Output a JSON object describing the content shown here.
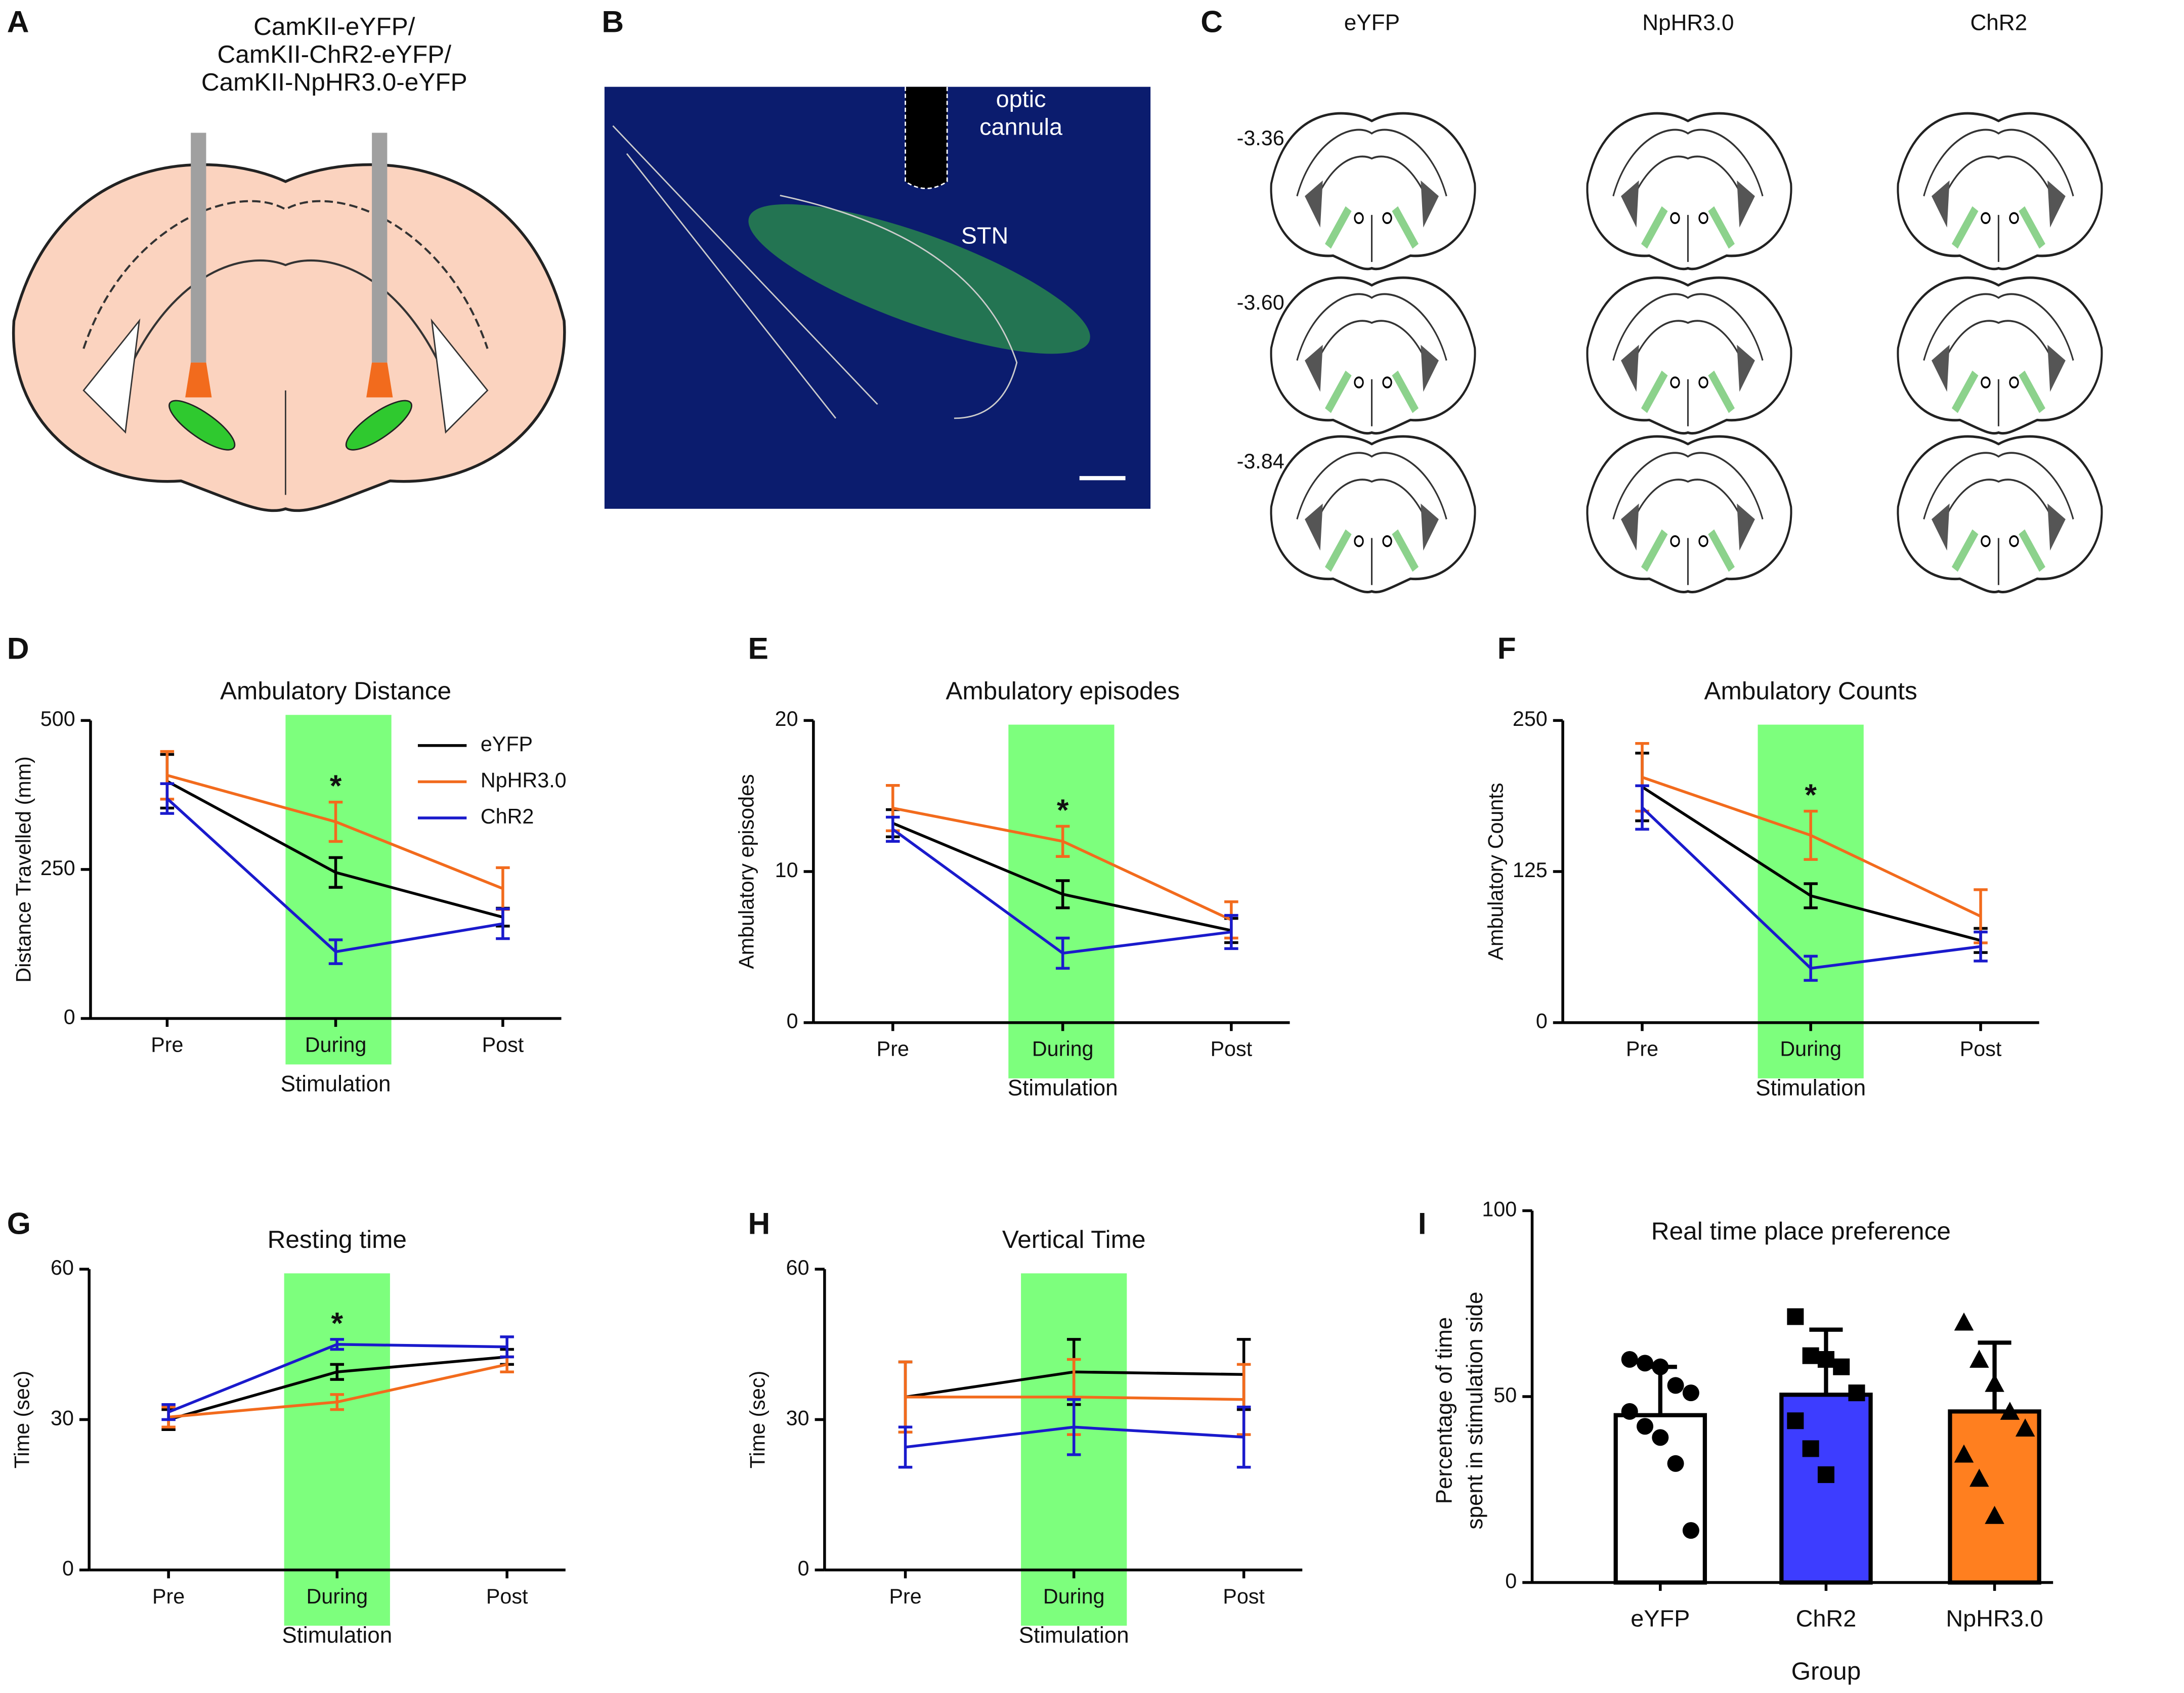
{
  "figure": {
    "panels": {
      "A": {
        "label": "A",
        "lines": [
          "CamKII-eYFP/",
          "CamKII-ChR2-eYFP/",
          "CamKII-NpHR3.0-eYFP"
        ]
      },
      "B": {
        "label": "B",
        "cannula": [
          "optic",
          "cannula"
        ],
        "region": "STN"
      },
      "C": {
        "label": "C",
        "columns": [
          "eYFP",
          "NpHR3.0",
          "ChR2"
        ],
        "rows": [
          "-3.36",
          "-3.60",
          "-3.84"
        ]
      }
    }
  },
  "chart_data": [
    {
      "type": "line",
      "panel": "D",
      "title": "Ambulatory Distance",
      "xlabel": "Stimulation",
      "ylabel": "Distance Travelled (mm)",
      "categories": [
        "Pre",
        "During",
        "Post"
      ],
      "ylim": [
        0,
        500
      ],
      "yticks": [
        0,
        250,
        500
      ],
      "band_color": "#7dff7d",
      "annotation": "*",
      "legend": "upper right",
      "series": [
        {
          "name": "eYFP",
          "color": "#000000",
          "values": [
            398,
            245,
            170
          ],
          "errors": [
            45,
            25,
            15
          ]
        },
        {
          "name": "NpHR3.0",
          "color": "#f26b1d",
          "values": [
            408,
            330,
            218
          ],
          "errors": [
            40,
            33,
            35
          ]
        },
        {
          "name": "ChR2",
          "color": "#1a1acc",
          "values": [
            369,
            112,
            159
          ],
          "errors": [
            25,
            20,
            25
          ]
        }
      ]
    },
    {
      "type": "line",
      "panel": "E",
      "title": "Ambulatory episodes",
      "xlabel": "Stimulation",
      "ylabel": "Ambulatory episodes",
      "categories": [
        "Pre",
        "During",
        "Post"
      ],
      "ylim": [
        0,
        20
      ],
      "yticks": [
        0,
        10,
        20
      ],
      "band_color": "#7dff7d",
      "annotation": "*",
      "series": [
        {
          "name": "eYFP",
          "color": "#000000",
          "values": [
            13.2,
            8.5,
            6.1
          ],
          "errors": [
            0.9,
            0.9,
            0.8
          ]
        },
        {
          "name": "NpHR3.0",
          "color": "#f26b1d",
          "values": [
            14.2,
            12,
            6.8
          ],
          "errors": [
            1.5,
            1,
            1.2
          ]
        },
        {
          "name": "ChR2",
          "color": "#1a1acc",
          "values": [
            12.8,
            4.6,
            6.0
          ],
          "errors": [
            0.8,
            1.0,
            1.1
          ]
        }
      ]
    },
    {
      "type": "line",
      "panel": "F",
      "title": "Ambulatory Counts",
      "xlabel": "Stimulation",
      "ylabel": "Ambulatory Counts",
      "categories": [
        "Pre",
        "During",
        "Post"
      ],
      "ylim": [
        0,
        250
      ],
      "yticks": [
        0,
        125,
        250
      ],
      "band_color": "#7dff7d",
      "annotation": "*",
      "series": [
        {
          "name": "eYFP",
          "color": "#000000",
          "values": [
            195,
            105,
            68
          ],
          "errors": [
            28,
            10,
            10
          ]
        },
        {
          "name": "NpHR3.0",
          "color": "#f26b1d",
          "values": [
            203,
            155,
            88
          ],
          "errors": [
            28,
            20,
            22
          ]
        },
        {
          "name": "ChR2",
          "color": "#1a1acc",
          "values": [
            178,
            45,
            63
          ],
          "errors": [
            18,
            10,
            12
          ]
        }
      ]
    },
    {
      "type": "line",
      "panel": "G",
      "title": "Resting time",
      "xlabel": "Stimulation",
      "ylabel": "Time (sec)",
      "categories": [
        "Pre",
        "During",
        "Post"
      ],
      "ylim": [
        0,
        60
      ],
      "yticks": [
        0,
        30,
        60
      ],
      "band_color": "#7dff7d",
      "annotation": "*",
      "series": [
        {
          "name": "eYFP",
          "color": "#000000",
          "values": [
            30,
            39.5,
            42.5
          ],
          "errors": [
            2,
            1.5,
            1.5
          ]
        },
        {
          "name": "NpHR3.0",
          "color": "#f26b1d",
          "values": [
            30.5,
            33.5,
            41
          ],
          "errors": [
            2,
            1.5,
            1.5
          ]
        },
        {
          "name": "ChR2",
          "color": "#1a1acc",
          "values": [
            31.5,
            45,
            44.5
          ],
          "errors": [
            1.5,
            1,
            2
          ]
        }
      ]
    },
    {
      "type": "line",
      "panel": "H",
      "title": "Vertical Time",
      "xlabel": "Stimulation",
      "ylabel": "Time (sec)",
      "categories": [
        "Pre",
        "During",
        "Post"
      ],
      "ylim": [
        0,
        60
      ],
      "yticks": [
        0,
        30,
        60
      ],
      "band_color": "#7dff7d",
      "series": [
        {
          "name": "eYFP",
          "color": "#000000",
          "values": [
            34.5,
            39.5,
            39
          ],
          "errors": [
            7,
            6.5,
            7
          ]
        },
        {
          "name": "NpHR3.0",
          "color": "#f26b1d",
          "values": [
            34.5,
            34.5,
            34
          ],
          "errors": [
            7,
            7.5,
            7
          ]
        },
        {
          "name": "ChR2",
          "color": "#1a1acc",
          "values": [
            24.5,
            28.5,
            26.5
          ],
          "errors": [
            4,
            5.5,
            6
          ]
        }
      ]
    },
    {
      "type": "bar",
      "panel": "I",
      "title": "Real time place preference",
      "xlabel": "Group",
      "ylabel": [
        "Percentage of time",
        "spent in stimulation side"
      ],
      "categories": [
        "eYFP",
        "ChR2",
        "NpHR3.0"
      ],
      "ylim": [
        0,
        100
      ],
      "yticks": [
        0,
        50,
        100
      ],
      "values": [
        45,
        50.5,
        46
      ],
      "errors": [
        13,
        17.5,
        18.5
      ],
      "colors": [
        "#ffffff",
        "#3d3dff",
        "#ff7f1f"
      ],
      "markers": [
        "circle",
        "square",
        "triangle"
      ],
      "points": [
        [
          60,
          59,
          58,
          53,
          51,
          46,
          42,
          39,
          32,
          14
        ],
        [
          71.5,
          61,
          60,
          58,
          51,
          43.5,
          36,
          29
        ],
        [
          70,
          60,
          53.5,
          46,
          41.5,
          34.5,
          28,
          18
        ]
      ]
    }
  ]
}
